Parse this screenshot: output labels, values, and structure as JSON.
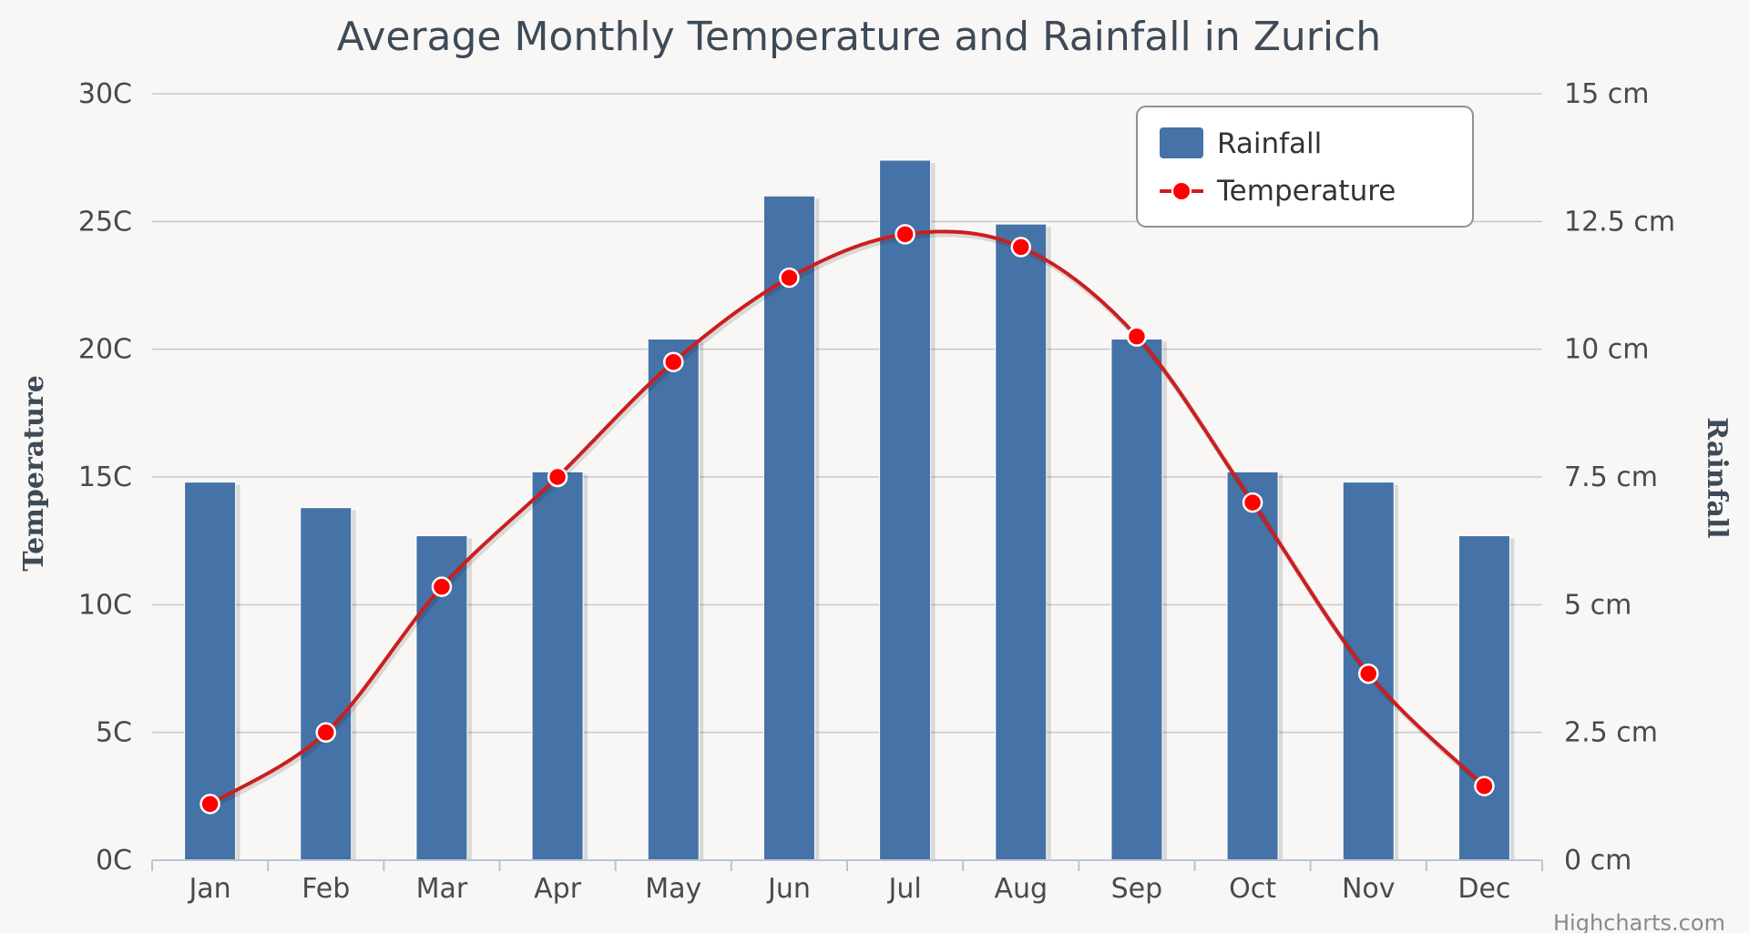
{
  "chart_data": {
    "type": "bar",
    "title": "Average Monthly Temperature and Rainfall in Zurich",
    "categories": [
      "Jan",
      "Feb",
      "Mar",
      "Apr",
      "May",
      "Jun",
      "Jul",
      "Aug",
      "Sep",
      "Oct",
      "Nov",
      "Dec"
    ],
    "series": [
      {
        "name": "Rainfall",
        "type": "bar",
        "axis": "right",
        "color": "#4572a7",
        "values": [
          7.4,
          6.9,
          6.35,
          7.6,
          10.2,
          13.0,
          13.7,
          12.45,
          10.2,
          7.6,
          7.4,
          6.35
        ]
      },
      {
        "name": "Temperature",
        "type": "line",
        "axis": "left",
        "color": "#cc1e1e",
        "marker_color": "#ff0000",
        "values": [
          2.2,
          5.0,
          10.7,
          15.0,
          19.5,
          22.8,
          24.5,
          24.0,
          20.5,
          14.0,
          7.3,
          2.9
        ]
      }
    ],
    "y_left": {
      "label": "Temperature",
      "range": [
        0,
        30
      ],
      "ticks": [
        "0C",
        "5C",
        "10C",
        "15C",
        "20C",
        "25C",
        "30C"
      ]
    },
    "y_right": {
      "label": "Rainfall",
      "range": [
        0,
        15
      ],
      "ticks": [
        "0 cm",
        "2.5 cm",
        "5 cm",
        "7.5 cm",
        "10 cm",
        "12.5 cm",
        "15 cm"
      ]
    },
    "grid": true,
    "legend": "top-right",
    "credit": "Highcharts.com"
  }
}
